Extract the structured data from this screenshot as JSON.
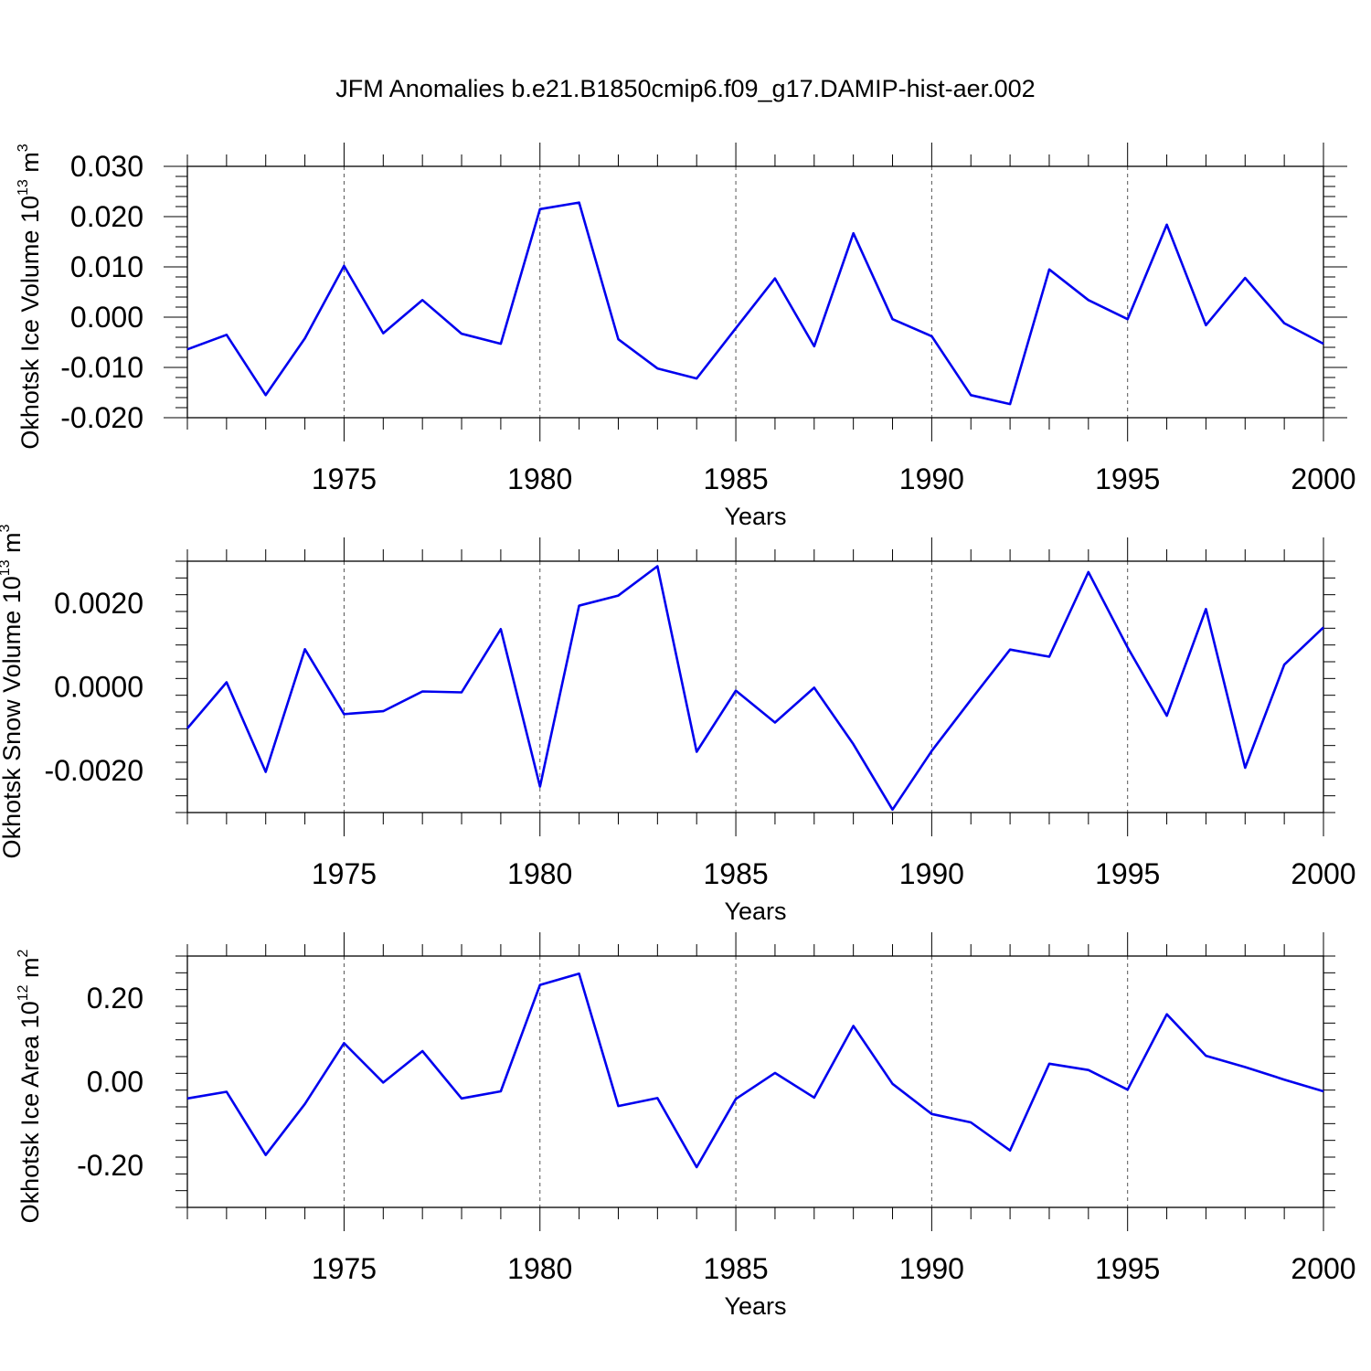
{
  "figure": {
    "title": "JFM Anomalies b.e21.B1850cmip6.f09_g17.DAMIP-hist-aer.002"
  },
  "chart_data": [
    {
      "type": "line",
      "title": "JFM Anomalies b.e21.B1850cmip6.f09_g17.DAMIP-hist-aer.002",
      "xlabel": "Years",
      "ylabel": "Okhotsk Ice Volume 10",
      "ylabel_exp": "13",
      "ylabel_unit": "m",
      "ylabel_unit_exp": "3",
      "xlim": [
        1971,
        2000
      ],
      "ylim": [
        -0.02,
        0.03
      ],
      "xticks": [
        1975,
        1980,
        1985,
        1990,
        1995,
        2000
      ],
      "xtick_labels": [
        "1975",
        "1980",
        "1985",
        "1990",
        "1995",
        "2000"
      ],
      "yticks": [
        -0.02,
        -0.01,
        0.0,
        0.01,
        0.02,
        0.03
      ],
      "ytick_labels": [
        "-0.020",
        "-0.010",
        "0.000",
        "0.010",
        "0.020",
        "0.030"
      ],
      "grid": "dashed vertical at major x ticks",
      "color": "#0000ee",
      "x": [
        1971,
        1972,
        1973,
        1974,
        1975,
        1976,
        1977,
        1978,
        1979,
        1980,
        1981,
        1982,
        1983,
        1984,
        1985,
        1986,
        1987,
        1988,
        1989,
        1990,
        1991,
        1992,
        1993,
        1994,
        1995,
        1996,
        1997,
        1998,
        1999,
        2000
      ],
      "values": [
        -0.0064,
        -0.0035,
        -0.0155,
        -0.0042,
        0.0102,
        -0.0032,
        0.0034,
        -0.0033,
        -0.0053,
        0.0215,
        0.0228,
        -0.0044,
        -0.0102,
        -0.0122,
        -0.0022,
        0.0077,
        -0.0058,
        0.0167,
        -0.0004,
        -0.0038,
        -0.0155,
        -0.0173,
        0.0095,
        0.0034,
        -0.0004,
        0.0184,
        -0.0016,
        0.0078,
        -0.0012,
        -0.0053
      ]
    },
    {
      "type": "line",
      "xlabel": "Years",
      "ylabel": "Okhotsk Snow Volume 10",
      "ylabel_exp": "13",
      "ylabel_unit": "m",
      "ylabel_unit_exp": "3",
      "xlim": [
        1971,
        2000
      ],
      "ylim": [
        -0.003,
        0.003
      ],
      "xticks": [
        1975,
        1980,
        1985,
        1990,
        1995,
        2000
      ],
      "xtick_labels": [
        "1975",
        "1980",
        "1985",
        "1990",
        "1995",
        "2000"
      ],
      "yticks": [
        -0.002,
        0.0,
        0.002
      ],
      "ytick_labels": [
        "-0.0020",
        "0.0000",
        "0.0020"
      ],
      "grid": "dashed vertical at major x ticks",
      "color": "#0000ee",
      "x": [
        1971,
        1972,
        1973,
        1974,
        1975,
        1976,
        1977,
        1978,
        1979,
        1980,
        1981,
        1982,
        1983,
        1984,
        1985,
        1986,
        1987,
        1988,
        1989,
        1990,
        1991,
        1992,
        1993,
        1994,
        1995,
        1996,
        1997,
        1998,
        1999,
        2000
      ],
      "values": [
        -0.00099,
        0.00011,
        -0.00203,
        0.0009,
        -0.00065,
        -0.00058,
        -0.00011,
        -0.00013,
        0.00138,
        -0.00238,
        0.00194,
        0.00218,
        0.00288,
        -0.00155,
        -9e-05,
        -0.00085,
        -2e-05,
        -0.00137,
        -0.00293,
        -0.00153,
        -0.00031,
        0.00089,
        0.00072,
        0.00274,
        0.00094,
        -0.00069,
        0.00186,
        -0.00193,
        0.00053,
        0.00142
      ]
    },
    {
      "type": "line",
      "xlabel": "Years",
      "ylabel": "Okhotsk Ice Area 10",
      "ylabel_exp": "12",
      "ylabel_unit": "m",
      "ylabel_unit_exp": "2",
      "xlim": [
        1971,
        2000
      ],
      "ylim": [
        -0.3,
        0.3
      ],
      "xticks": [
        1975,
        1980,
        1985,
        1990,
        1995,
        2000
      ],
      "xtick_labels": [
        "1975",
        "1980",
        "1985",
        "1990",
        "1995",
        "2000"
      ],
      "yticks": [
        -0.2,
        0.0,
        0.2
      ],
      "ytick_labels": [
        "-0.20",
        "0.00",
        "0.20"
      ],
      "grid": "dashed vertical at major x ticks",
      "color": "#0000ee",
      "x": [
        1971,
        1972,
        1973,
        1974,
        1975,
        1976,
        1977,
        1978,
        1979,
        1980,
        1981,
        1982,
        1983,
        1984,
        1985,
        1986,
        1987,
        1988,
        1989,
        1990,
        1991,
        1992,
        1993,
        1994,
        1995,
        1996,
        1997,
        1998,
        1999,
        2000
      ],
      "values": [
        -0.04,
        -0.024,
        -0.175,
        -0.053,
        0.092,
        -0.002,
        0.073,
        -0.04,
        -0.023,
        0.231,
        0.258,
        -0.058,
        -0.039,
        -0.204,
        -0.041,
        0.021,
        -0.038,
        0.133,
        -0.005,
        -0.077,
        -0.097,
        -0.164,
        0.043,
        0.028,
        -0.019,
        0.161,
        0.062,
        0.035,
        0.005,
        -0.023
      ]
    }
  ]
}
